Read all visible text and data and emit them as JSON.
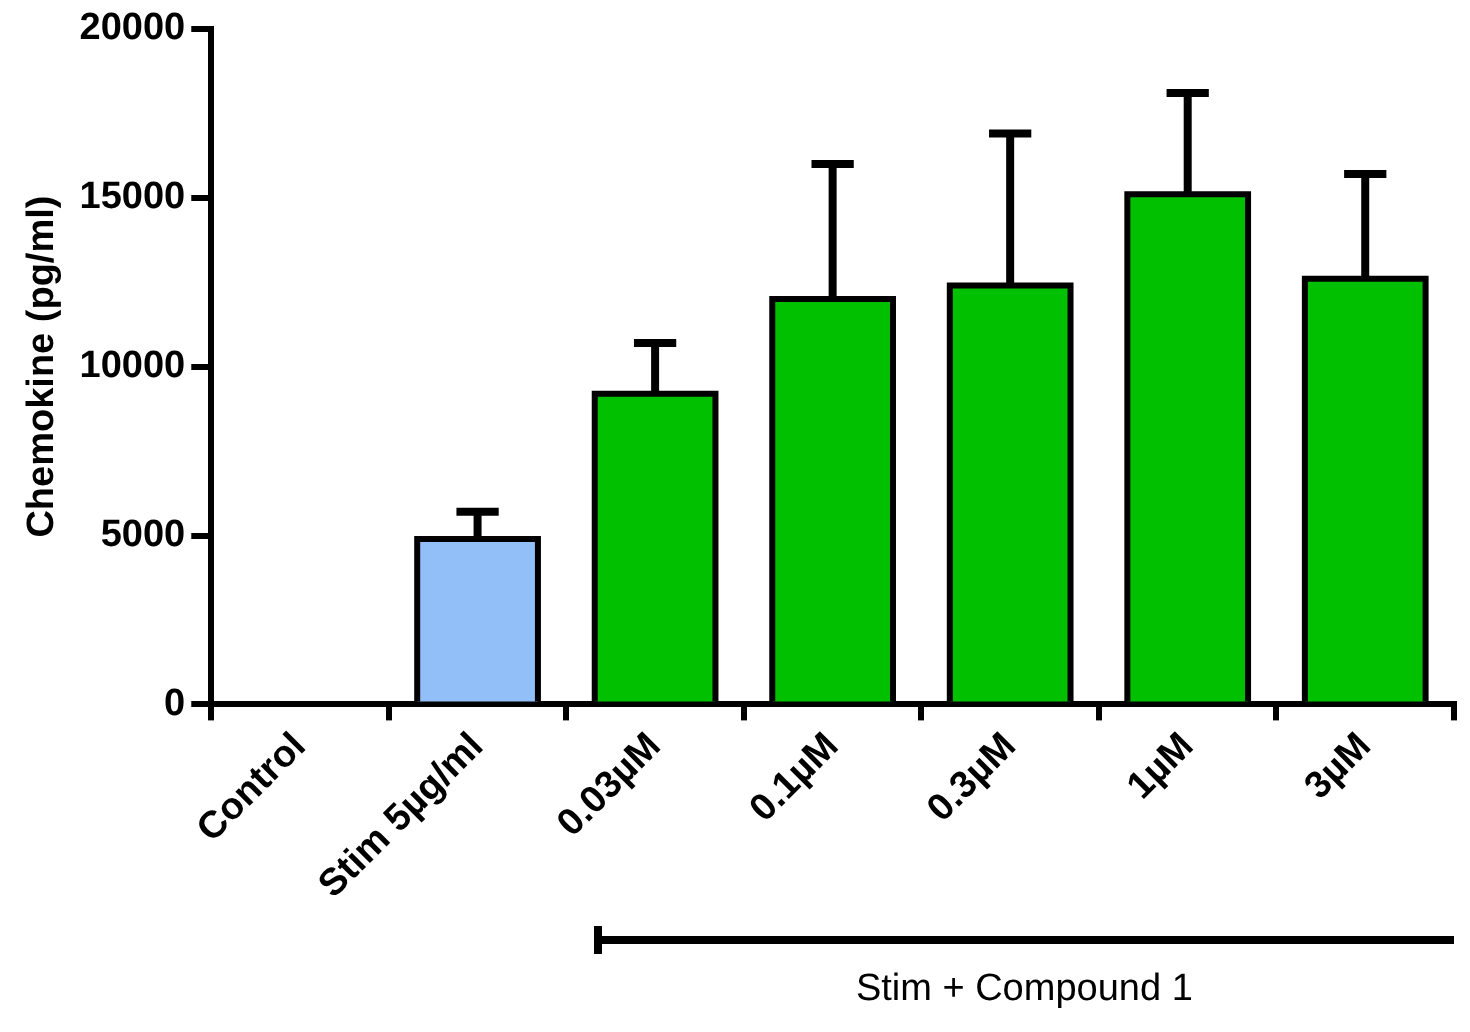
{
  "chart_data": {
    "type": "bar",
    "ylabel": "Chemokine (pg/ml)",
    "categories": [
      "Control",
      "Stim 5µg/ml",
      "0.03µM",
      "0.1µM",
      "0.3µM",
      "1µM",
      "3µM"
    ],
    "values": [
      0,
      4900,
      9200,
      12000,
      12400,
      15100,
      12600
    ],
    "colors": [
      "#93bff9",
      "#93bff9",
      "#00c000",
      "#00c000",
      "#00c000",
      "#00c000",
      "#00c000"
    ],
    "errors": [
      null,
      [
        4900,
        5700
      ],
      [
        9200,
        10700
      ],
      [
        12000,
        16000
      ],
      [
        12400,
        16900
      ],
      [
        15100,
        18100
      ],
      [
        12600,
        15700
      ]
    ],
    "ylim": [
      0,
      20000
    ],
    "yticks": [
      0,
      5000,
      10000,
      15000,
      20000
    ],
    "grid": false,
    "annotations": [
      "Stim + Compound 1"
    ]
  }
}
